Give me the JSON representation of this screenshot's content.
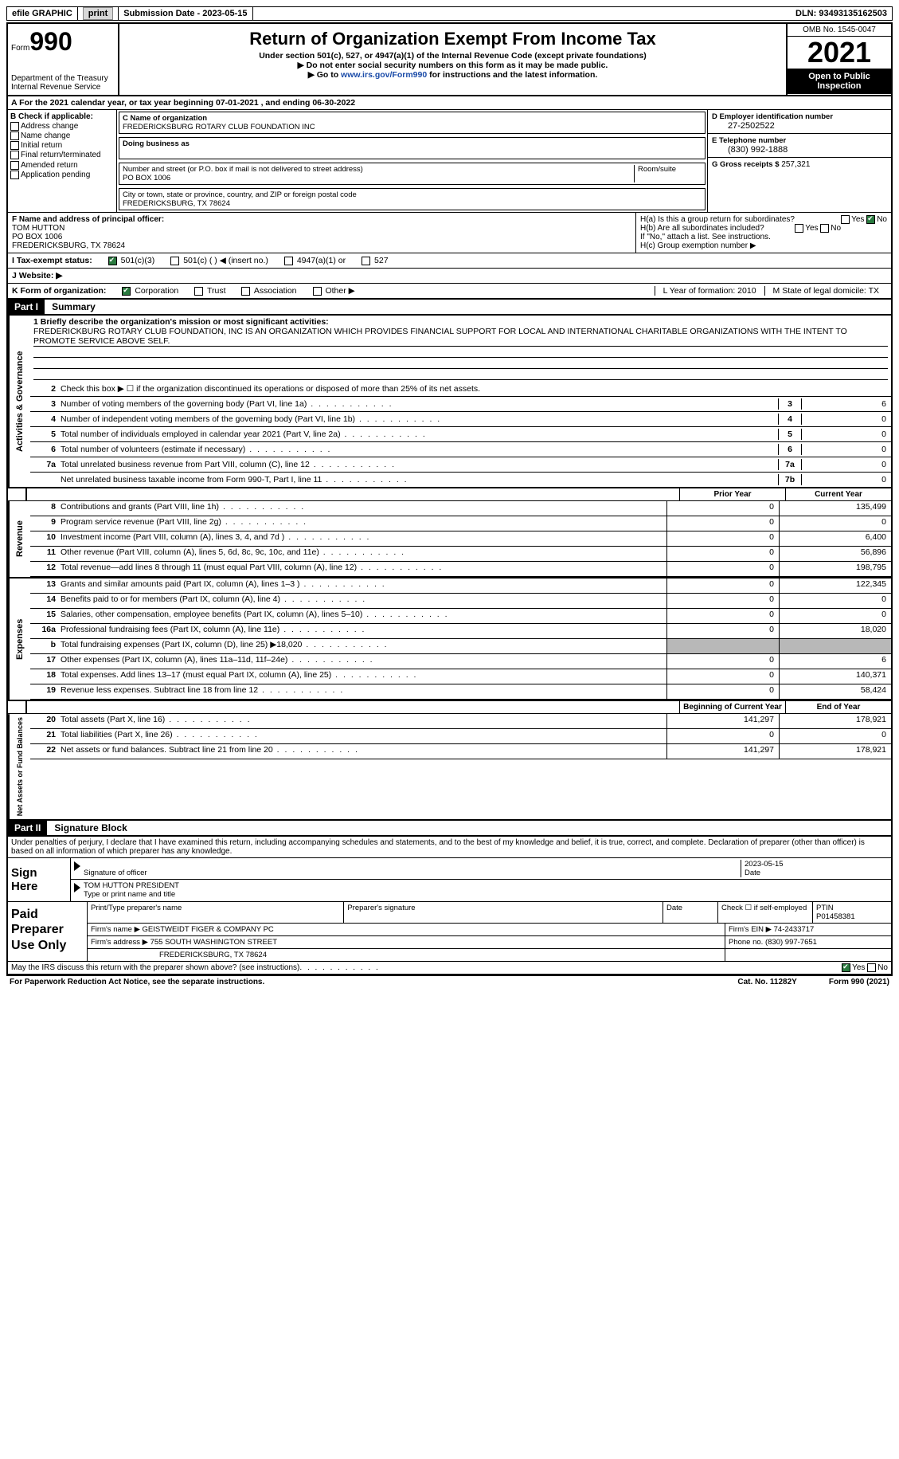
{
  "header": {
    "efile": "efile GRAPHIC",
    "print_btn": "print",
    "submission": "Submission Date - 2023-05-15",
    "dln": "DLN: 93493135162503"
  },
  "form": {
    "form_word": "Form",
    "form_num": "990",
    "title": "Return of Organization Exempt From Income Tax",
    "subtitle": "Under section 501(c), 527, or 4947(a)(1) of the Internal Revenue Code (except private foundations)",
    "note1": "▶ Do not enter social security numbers on this form as it may be made public.",
    "note2_pre": "▶ Go to ",
    "note2_link": "www.irs.gov/Form990",
    "note2_post": " for instructions and the latest information.",
    "dept": "Department of the Treasury\nInternal Revenue Service",
    "omb": "OMB No. 1545-0047",
    "year": "2021",
    "open": "Open to Public Inspection"
  },
  "taxyear": {
    "line": "A For the 2021 calendar year, or tax year beginning 07-01-2021   , and ending 06-30-2022"
  },
  "sectionB": {
    "title": "B Check if applicable:",
    "addr_change": "Address change",
    "name_change": "Name change",
    "initial": "Initial return",
    "final": "Final return/terminated",
    "amended": "Amended return",
    "app_pending": "Application pending",
    "c_name_label": "C Name of organization",
    "c_name": "FREDERICKSBURG ROTARY CLUB FOUNDATION INC",
    "dba_label": "Doing business as",
    "addr_label": "Number and street (or P.O. box if mail is not delivered to street address)",
    "room_label": "Room/suite",
    "addr": "PO BOX 1006",
    "city_label": "City or town, state or province, country, and ZIP or foreign postal code",
    "city": "FREDERICKSBURG, TX   78624",
    "d_label": "D Employer identification number",
    "d_val": "27-2502522",
    "e_label": "E Telephone number",
    "e_val": "(830) 992-1888",
    "g_label": "G Gross receipts $",
    "g_val": "257,321"
  },
  "sectionF": {
    "f_label": "F Name and address of principal officer:",
    "f_name": "TOM HUTTON",
    "f_addr1": "PO BOX 1006",
    "f_addr2": "FREDERICKSBURG, TX   78624",
    "ha": "H(a)  Is this a group return for subordinates?",
    "hb": "H(b)  Are all subordinates included?",
    "hb_note": "If \"No,\" attach a list. See instructions.",
    "hc": "H(c)  Group exemption number ▶",
    "yes": "Yes",
    "no": "No"
  },
  "rowI": {
    "label": "I  Tax-exempt status:",
    "o1": "501(c)(3)",
    "o2": "501(c) (   ) ◀ (insert no.)",
    "o3": "4947(a)(1) or",
    "o4": "527"
  },
  "rowJ": {
    "label": "J  Website: ▶"
  },
  "rowK": {
    "label": "K Form of organization:",
    "corp": "Corporation",
    "trust": "Trust",
    "assoc": "Association",
    "other": "Other ▶",
    "l": "L Year of formation: 2010",
    "m": "M State of legal domicile: TX"
  },
  "parts": {
    "p1": "Part I",
    "p1_title": "Summary",
    "p2": "Part II",
    "p2_title": "Signature Block"
  },
  "summary": {
    "l1_label": "1  Briefly describe the organization's mission or most significant activities:",
    "l1_text": "FREDERICKBURG ROTARY CLUB FOUNDATION, INC IS AN ORGANIZATION WHICH PROVIDES FINANCIAL SUPPORT FOR LOCAL AND INTERNATIONAL CHARITABLE ORGANIZATIONS WITH THE INTENT TO PROMOTE SERVICE ABOVE SELF.",
    "l2": "Check this box ▶ ☐  if the organization discontinued its operations or disposed of more than 25% of its net assets.",
    "lines_single": [
      {
        "n": "3",
        "t": "Number of voting members of the governing body (Part VI, line 1a)",
        "box": "3",
        "v": "6"
      },
      {
        "n": "4",
        "t": "Number of independent voting members of the governing body (Part VI, line 1b)",
        "box": "4",
        "v": "0"
      },
      {
        "n": "5",
        "t": "Total number of individuals employed in calendar year 2021 (Part V, line 2a)",
        "box": "5",
        "v": "0"
      },
      {
        "n": "6",
        "t": "Total number of volunteers (estimate if necessary)",
        "box": "6",
        "v": "0"
      },
      {
        "n": "7a",
        "t": "Total unrelated business revenue from Part VIII, column (C), line 12",
        "box": "7a",
        "v": "0"
      },
      {
        "n": "",
        "t": "Net unrelated business taxable income from Form 990-T, Part I, line 11",
        "box": "7b",
        "v": "0"
      }
    ],
    "col_prior": "Prior Year",
    "col_curr": "Current Year",
    "revenue": [
      {
        "n": "8",
        "t": "Contributions and grants (Part VIII, line 1h)",
        "p": "0",
        "c": "135,499"
      },
      {
        "n": "9",
        "t": "Program service revenue (Part VIII, line 2g)",
        "p": "0",
        "c": "0"
      },
      {
        "n": "10",
        "t": "Investment income (Part VIII, column (A), lines 3, 4, and 7d )",
        "p": "0",
        "c": "6,400"
      },
      {
        "n": "11",
        "t": "Other revenue (Part VIII, column (A), lines 5, 6d, 8c, 9c, 10c, and 11e)",
        "p": "0",
        "c": "56,896"
      },
      {
        "n": "12",
        "t": "Total revenue—add lines 8 through 11 (must equal Part VIII, column (A), line 12)",
        "p": "0",
        "c": "198,795"
      }
    ],
    "expenses": [
      {
        "n": "13",
        "t": "Grants and similar amounts paid (Part IX, column (A), lines 1–3 )",
        "p": "0",
        "c": "122,345"
      },
      {
        "n": "14",
        "t": "Benefits paid to or for members (Part IX, column (A), line 4)",
        "p": "0",
        "c": "0"
      },
      {
        "n": "15",
        "t": "Salaries, other compensation, employee benefits (Part IX, column (A), lines 5–10)",
        "p": "0",
        "c": "0"
      },
      {
        "n": "16a",
        "t": "Professional fundraising fees (Part IX, column (A), line 11e)",
        "p": "0",
        "c": "18,020"
      },
      {
        "n": "b",
        "t": "Total fundraising expenses (Part IX, column (D), line 25) ▶18,020",
        "p": "",
        "c": "",
        "gray": true
      },
      {
        "n": "17",
        "t": "Other expenses (Part IX, column (A), lines 11a–11d, 11f–24e)",
        "p": "0",
        "c": "6"
      },
      {
        "n": "18",
        "t": "Total expenses. Add lines 13–17 (must equal Part IX, column (A), line 25)",
        "p": "0",
        "c": "140,371"
      },
      {
        "n": "19",
        "t": "Revenue less expenses. Subtract line 18 from line 12",
        "p": "0",
        "c": "58,424"
      }
    ],
    "col_beg": "Beginning of Current Year",
    "col_end": "End of Year",
    "netassets": [
      {
        "n": "20",
        "t": "Total assets (Part X, line 16)",
        "p": "141,297",
        "c": "178,921"
      },
      {
        "n": "21",
        "t": "Total liabilities (Part X, line 26)",
        "p": "0",
        "c": "0"
      },
      {
        "n": "22",
        "t": "Net assets or fund balances. Subtract line 21 from line 20",
        "p": "141,297",
        "c": "178,921"
      }
    ],
    "vert_ag": "Activities & Governance",
    "vert_rev": "Revenue",
    "vert_exp": "Expenses",
    "vert_na": "Net Assets or Fund Balances"
  },
  "sig": {
    "penalties": "Under penalties of perjury, I declare that I have examined this return, including accompanying schedules and statements, and to the best of my knowledge and belief, it is true, correct, and complete. Declaration of preparer (other than officer) is based on all information of which preparer has any knowledge.",
    "sign_here": "Sign Here",
    "sig_officer": "Signature of officer",
    "sig_date": "2023-05-15",
    "date_label": "Date",
    "name_title": "TOM HUTTON  PRESIDENT",
    "name_title_label": "Type or print name and title",
    "paid_prep": "Paid Preparer Use Only",
    "print_name_label": "Print/Type preparer's name",
    "prep_sig_label": "Preparer's signature",
    "check_self": "Check ☐ if self-employed",
    "ptin_label": "PTIN",
    "ptin": "P01458381",
    "firm_name_label": "Firm's name    ▶",
    "firm_name": "GEISTWEIDT FIGER & COMPANY PC",
    "firm_ein_label": "Firm's EIN ▶",
    "firm_ein": "74-2433717",
    "firm_addr_label": "Firm's address ▶",
    "firm_addr": "755 SOUTH WASHINGTON STREET",
    "firm_city": "FREDERICKSBURG, TX   78624",
    "phone_label": "Phone no.",
    "phone": "(830) 997-7651",
    "may_irs": "May the IRS discuss this return with the preparer shown above? (see instructions)"
  },
  "footer": {
    "paperwork": "For Paperwork Reduction Act Notice, see the separate instructions.",
    "cat": "Cat. No. 11282Y",
    "form": "Form 990 (2021)"
  }
}
